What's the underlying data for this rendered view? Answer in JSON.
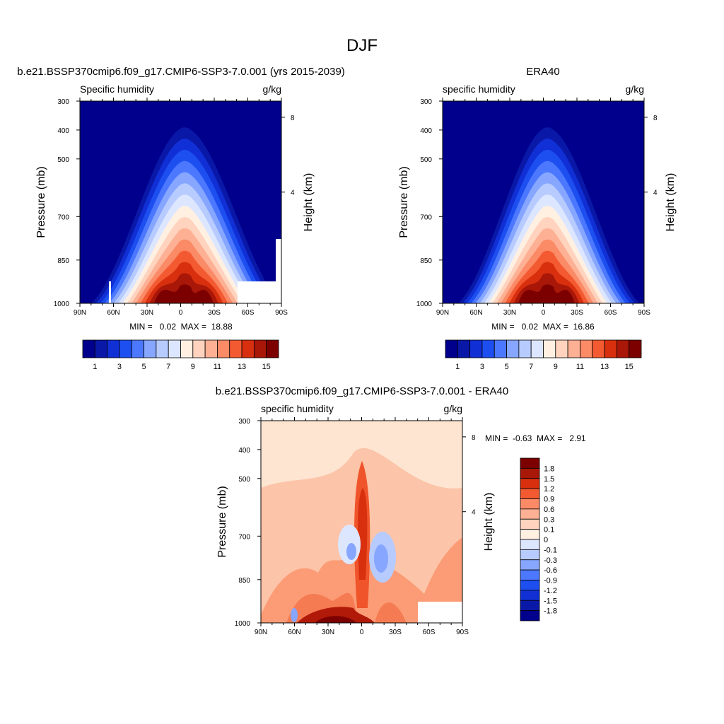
{
  "figure": {
    "title": "DJF",
    "panels": [
      {
        "title": "b.e21.BSSP370cmip6.f09_g17.CMIP6-SSP3-7.0.001 (yrs 2015-2039)",
        "left_label": "Specific humidity",
        "right_label": "g/kg",
        "stats": "MIN =   0.02  MAX =  18.88"
      },
      {
        "title": "ERA40",
        "left_label": "specific humidity",
        "right_label": "g/kg",
        "stats": "MIN =   0.02  MAX =  16.86"
      },
      {
        "title": "b.e21.BSSP370cmip6.f09_g17.CMIP6-SSP3-7.0.001 - ERA40",
        "left_label": "specific humidity",
        "right_label": "g/kg",
        "stats": "MIN =  -0.63  MAX =   2.91"
      }
    ],
    "y_label": "Pressure (mb)",
    "y2_label": "Height (km)",
    "x_ticks": [
      "90N",
      "60N",
      "30N",
      "0",
      "30S",
      "60S",
      "90S"
    ],
    "y_ticks": [
      "300",
      "400",
      "500",
      "700",
      "850",
      "1000"
    ],
    "y2_ticks": [
      "8",
      "4"
    ],
    "cb_main_labels": [
      "1",
      "3",
      "5",
      "7",
      "9",
      "11",
      "13",
      "15"
    ],
    "cb_diff_labels": [
      "1.8",
      "1.5",
      "1.2",
      "0.9",
      "0.6",
      "0.3",
      "0.1",
      "0",
      "-0.1",
      "-0.3",
      "-0.6",
      "-0.9",
      "-1.2",
      "-1.5",
      "-1.8"
    ]
  },
  "colors": {
    "main_scale": [
      "#00008c",
      "#0a18a8",
      "#1030d6",
      "#1d4ff0",
      "#4c78ff",
      "#86a6ff",
      "#b7cbff",
      "#dde6ff",
      "#fff0e2",
      "#ffd3bd",
      "#fdb094",
      "#fb8a66",
      "#f45a32",
      "#d8300f",
      "#a81708",
      "#7c0000"
    ],
    "diff_scale": [
      "#7c0000",
      "#a81708",
      "#d8300f",
      "#f45a32",
      "#fb8a66",
      "#fdb094",
      "#ffd3bd",
      "#fff0e2",
      "#dde6ff",
      "#b7cbff",
      "#86a6ff",
      "#4c78ff",
      "#1d4ff0",
      "#1030d6",
      "#0a18a8",
      "#00008c"
    ]
  },
  "chart_data": [
    {
      "type": "heatmap",
      "title": "b.e21.BSSP370cmip6.f09_g17.CMIP6-SSP3-7.0.001 (yrs 2015-2039)",
      "xlabel": "",
      "ylabel": "Pressure (mb)",
      "y2label": "Height (km)",
      "x_range": [
        "90N",
        "90S"
      ],
      "y_range_mb": [
        300,
        1000
      ],
      "units": "g/kg",
      "levels": [
        1,
        2,
        3,
        4,
        5,
        6,
        7,
        8,
        9,
        10,
        11,
        12,
        13,
        14,
        15
      ],
      "min": 0.02,
      "max": 18.88,
      "peak_latitude_deg": 4,
      "column_outline": [
        {
          "p": 1000,
          "level": 15,
          "lat_half_width": 18
        },
        {
          "p": 880,
          "level": 12,
          "lat_half_width": 16
        },
        {
          "p": 800,
          "level": 9,
          "lat_half_width": 12
        },
        {
          "p": 650,
          "level": 6,
          "lat_half_width": 12
        },
        {
          "p": 500,
          "level": 3,
          "lat_half_width": 15
        },
        {
          "p": 400,
          "level": 1,
          "lat_half_width": 30
        }
      ]
    },
    {
      "type": "heatmap",
      "title": "ERA40",
      "xlabel": "",
      "ylabel": "Pressure (mb)",
      "y2label": "Height (km)",
      "x_range": [
        "90N",
        "90S"
      ],
      "y_range_mb": [
        300,
        1000
      ],
      "units": "g/kg",
      "levels": [
        1,
        2,
        3,
        4,
        5,
        6,
        7,
        8,
        9,
        10,
        11,
        12,
        13,
        14,
        15
      ],
      "min": 0.02,
      "max": 16.86,
      "peak_latitude_deg": 4
    },
    {
      "type": "heatmap",
      "title": "b.e21.BSSP370cmip6.f09_g17.CMIP6-SSP3-7.0.001 - ERA40",
      "xlabel": "",
      "ylabel": "Pressure (mb)",
      "y2label": "Height (km)",
      "x_range": [
        "90N",
        "90S"
      ],
      "y_range_mb": [
        300,
        1000
      ],
      "units": "g/kg",
      "levels": [
        -1.8,
        -1.5,
        -1.2,
        -0.9,
        -0.6,
        -0.3,
        -0.1,
        0,
        0.1,
        0.3,
        0.6,
        0.9,
        1.2,
        1.5,
        1.8
      ],
      "min": -0.63,
      "max": 2.91
    }
  ]
}
